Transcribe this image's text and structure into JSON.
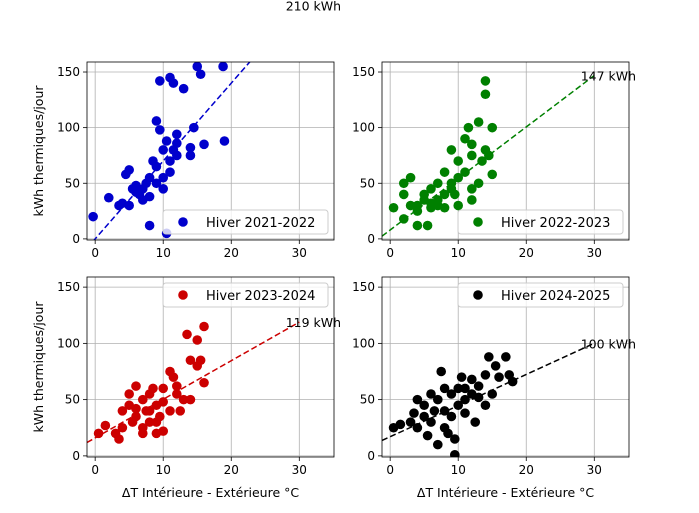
{
  "chart_data": [
    {
      "type": "scatter",
      "series_name": "Hiver 2021-2022",
      "color": "#0000cc",
      "legend": "lower-right",
      "ylabel": "kWh thermiques/jour",
      "xlabel": "",
      "xlim": [
        -1.2,
        35.1
      ],
      "ylim": [
        -1,
        159
      ],
      "xticks": [
        0,
        10,
        20,
        30
      ],
      "yticks": [
        0,
        50,
        100,
        150
      ],
      "fit": {
        "slope": 7.0,
        "intercept": 0
      },
      "annotation": {
        "text": "210 kWh",
        "x": 28,
        "y": 210
      },
      "points": [
        [
          -0.3,
          20
        ],
        [
          2,
          37
        ],
        [
          3.5,
          30
        ],
        [
          4,
          32
        ],
        [
          5,
          30
        ],
        [
          4.5,
          58
        ],
        [
          5,
          62
        ],
        [
          5.5,
          45
        ],
        [
          6,
          42
        ],
        [
          6.5,
          40
        ],
        [
          7,
          35
        ],
        [
          7.5,
          50
        ],
        [
          8,
          55
        ],
        [
          8,
          12
        ],
        [
          8.5,
          70
        ],
        [
          9,
          65
        ],
        [
          9,
          106
        ],
        [
          9.5,
          98
        ],
        [
          9.5,
          142
        ],
        [
          10,
          45
        ],
        [
          10,
          80
        ],
        [
          10.5,
          88
        ],
        [
          10.5,
          5
        ],
        [
          11,
          145
        ],
        [
          11,
          60
        ],
        [
          11.5,
          140
        ],
        [
          11.5,
          80
        ],
        [
          12,
          94
        ],
        [
          12,
          75
        ],
        [
          13,
          135
        ],
        [
          14,
          75
        ],
        [
          14,
          82
        ],
        [
          14.5,
          100
        ],
        [
          15,
          155
        ],
        [
          15.5,
          148
        ],
        [
          16,
          85
        ],
        [
          18.8,
          155
        ],
        [
          19,
          88
        ],
        [
          7,
          45
        ],
        [
          8,
          38
        ],
        [
          9,
          50
        ],
        [
          6,
          48
        ],
        [
          10,
          55
        ],
        [
          11,
          70
        ],
        [
          12,
          86
        ]
      ]
    },
    {
      "type": "scatter",
      "series_name": "Hiver 2022-2023",
      "color": "#008000",
      "legend": "lower-right",
      "ylabel": "",
      "xlabel": "",
      "xlim": [
        -1.2,
        35.1
      ],
      "ylim": [
        -1,
        159
      ],
      "xticks": [
        0,
        10,
        20,
        30
      ],
      "yticks": [
        0,
        50,
        100,
        150
      ],
      "fit": {
        "slope": 4.63,
        "intercept": 8
      },
      "annotation": {
        "text": "147 kWh",
        "x": 28,
        "y": 147
      },
      "points": [
        [
          0.5,
          28
        ],
        [
          2,
          50
        ],
        [
          2,
          40
        ],
        [
          3,
          55
        ],
        [
          2,
          18
        ],
        [
          4,
          12
        ],
        [
          4,
          30
        ],
        [
          5,
          35
        ],
        [
          5,
          40
        ],
        [
          5.5,
          12
        ],
        [
          6,
          45
        ],
        [
          6,
          28
        ],
        [
          7,
          50
        ],
        [
          7,
          35
        ],
        [
          8,
          60
        ],
        [
          8,
          40
        ],
        [
          9,
          80
        ],
        [
          9,
          50
        ],
        [
          9.5,
          40
        ],
        [
          10,
          55
        ],
        [
          10,
          70
        ],
        [
          11,
          60
        ],
        [
          11,
          90
        ],
        [
          11.5,
          100
        ],
        [
          12,
          85
        ],
        [
          12,
          75
        ],
        [
          12,
          35
        ],
        [
          13,
          105
        ],
        [
          13,
          50
        ],
        [
          13.5,
          70
        ],
        [
          14,
          142
        ],
        [
          14,
          130
        ],
        [
          14,
          80
        ],
        [
          14.5,
          75
        ],
        [
          15,
          100
        ],
        [
          15,
          58
        ],
        [
          7,
          30
        ],
        [
          8,
          28
        ],
        [
          3,
          30
        ],
        [
          4,
          25
        ],
        [
          6,
          32
        ],
        [
          9,
          45
        ],
        [
          10,
          30
        ],
        [
          12,
          45
        ]
      ]
    },
    {
      "type": "scatter",
      "series_name": "Hiver 2023-2024",
      "color": "#cc0000",
      "legend": "upper-right",
      "ylabel": "kWh thermiques/jour",
      "xlabel": "ΔT Intérieure - Extérieure °C",
      "xlim": [
        -1.2,
        35.1
      ],
      "ylim": [
        -1,
        159
      ],
      "xticks": [
        0,
        10,
        20,
        30
      ],
      "yticks": [
        0,
        50,
        100,
        150
      ],
      "fit": {
        "slope": 3.43,
        "intercept": 16
      },
      "annotation": {
        "text": "119 kWh",
        "x": 28,
        "y": 119
      },
      "points": [
        [
          0.5,
          20
        ],
        [
          1.5,
          27
        ],
        [
          3,
          20
        ],
        [
          3.5,
          15
        ],
        [
          4,
          40
        ],
        [
          4,
          25
        ],
        [
          5,
          45
        ],
        [
          5,
          55
        ],
        [
          5.5,
          30
        ],
        [
          6,
          62
        ],
        [
          6,
          35
        ],
        [
          7,
          50
        ],
        [
          7,
          20
        ],
        [
          7.5,
          40
        ],
        [
          8,
          55
        ],
        [
          8,
          30
        ],
        [
          8.5,
          60
        ],
        [
          9,
          20
        ],
        [
          9,
          45
        ],
        [
          9.5,
          35
        ],
        [
          10,
          60
        ],
        [
          10,
          48
        ],
        [
          11,
          75
        ],
        [
          11,
          40
        ],
        [
          11.5,
          70
        ],
        [
          12,
          55
        ],
        [
          12,
          62
        ],
        [
          12.5,
          40
        ],
        [
          13,
          50
        ],
        [
          13.5,
          108
        ],
        [
          14,
          85
        ],
        [
          14,
          50
        ],
        [
          15,
          103
        ],
        [
          15,
          80
        ],
        [
          15.5,
          85
        ],
        [
          16,
          115
        ],
        [
          16,
          65
        ],
        [
          8,
          40
        ],
        [
          9,
          30
        ],
        [
          6,
          42
        ],
        [
          7,
          25
        ],
        [
          10,
          22
        ]
      ]
    },
    {
      "type": "scatter",
      "series_name": "Hiver 2024-2025",
      "color": "#000000",
      "legend": "upper-right",
      "ylabel": "",
      "xlabel": "ΔT Intérieure - Extérieure °C",
      "xlim": [
        -1.2,
        35.1
      ],
      "ylim": [
        -1,
        159
      ],
      "xticks": [
        0,
        10,
        20,
        30
      ],
      "yticks": [
        0,
        50,
        100,
        150
      ],
      "fit": {
        "slope": 2.77,
        "intercept": 17
      },
      "annotation": {
        "text": "100 kWh",
        "x": 28,
        "y": 100
      },
      "points": [
        [
          0.5,
          25
        ],
        [
          1.5,
          28
        ],
        [
          3,
          30
        ],
        [
          3.5,
          38
        ],
        [
          4,
          25
        ],
        [
          4,
          50
        ],
        [
          5,
          35
        ],
        [
          5,
          45
        ],
        [
          5.5,
          18
        ],
        [
          6,
          55
        ],
        [
          6,
          30
        ],
        [
          7,
          10
        ],
        [
          7,
          50
        ],
        [
          7.5,
          75
        ],
        [
          8,
          60
        ],
        [
          8,
          40
        ],
        [
          8.5,
          20
        ],
        [
          9,
          55
        ],
        [
          9,
          35
        ],
        [
          9.5,
          15
        ],
        [
          9.5,
          1
        ],
        [
          10,
          45
        ],
        [
          10,
          60
        ],
        [
          10.5,
          70
        ],
        [
          11,
          50
        ],
        [
          11,
          38
        ],
        [
          12,
          55
        ],
        [
          12,
          68
        ],
        [
          12.5,
          30
        ],
        [
          13,
          62
        ],
        [
          14,
          72
        ],
        [
          14,
          45
        ],
        [
          14.5,
          88
        ],
        [
          15,
          55
        ],
        [
          15.5,
          80
        ],
        [
          16,
          70
        ],
        [
          17,
          88
        ],
        [
          17.5,
          72
        ],
        [
          18,
          66
        ],
        [
          6.5,
          40
        ],
        [
          8,
          25
        ],
        [
          11,
          60
        ],
        [
          13,
          52
        ]
      ]
    }
  ]
}
